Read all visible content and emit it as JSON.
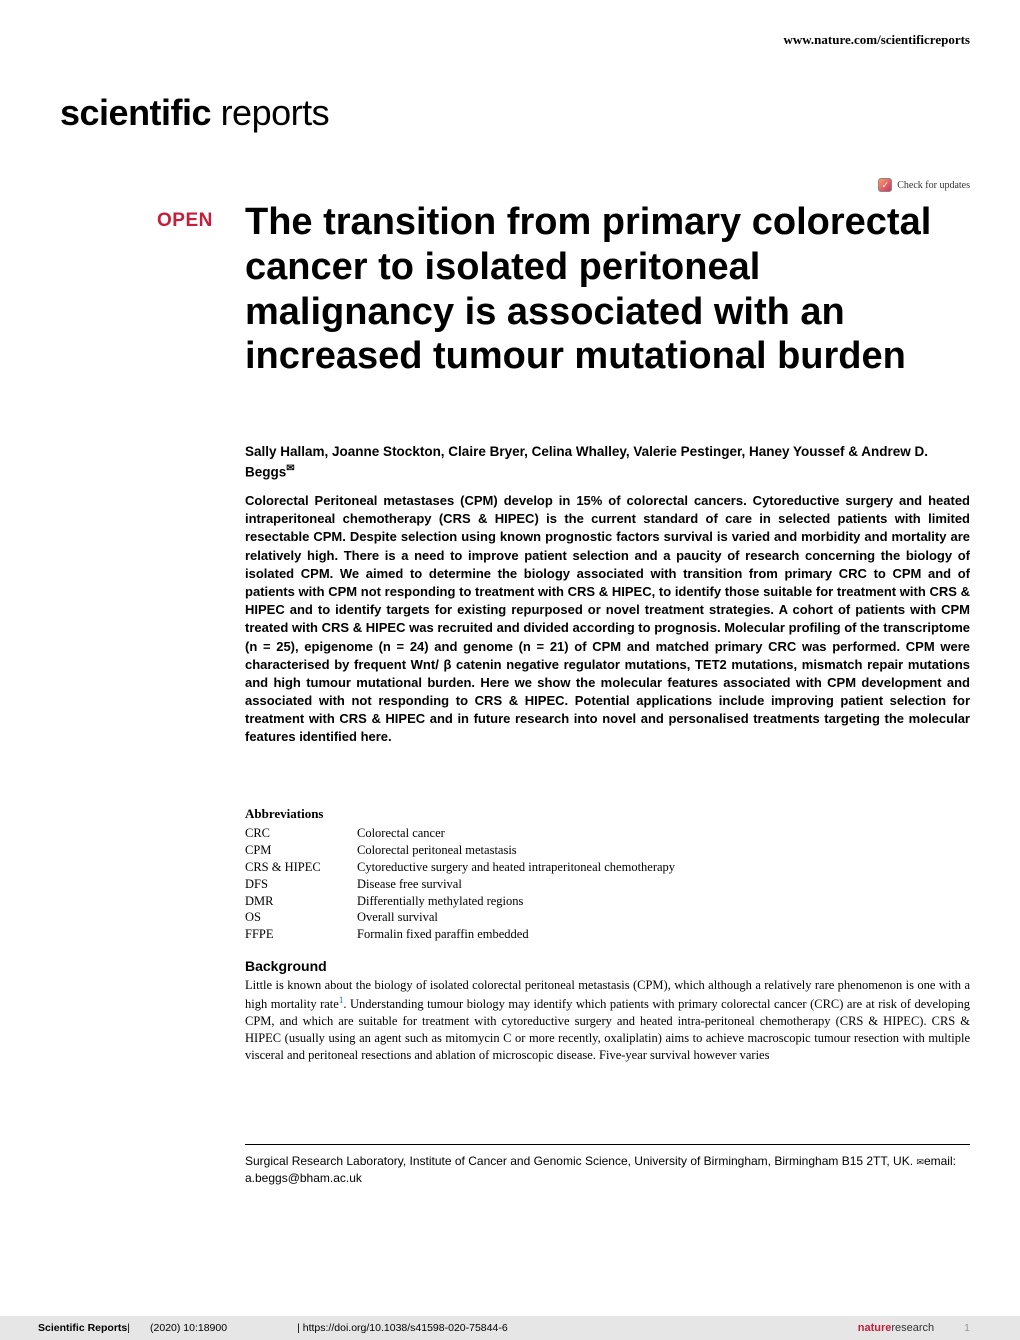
{
  "header": {
    "url": "www.nature.com/scientificreports"
  },
  "journal_logo": {
    "bold_part": "scientific",
    "light_part": " reports"
  },
  "check_updates": {
    "label": "Check for updates"
  },
  "open_badge": "OPEN",
  "article": {
    "title": "The transition from primary colorectal cancer to isolated peritoneal malignancy is associated with an increased tumour mutational burden",
    "authors": "Sally Hallam, Joanne Stockton, Claire Bryer, Celina Whalley, Valerie Pestinger, Haney Youssef & Andrew D. Beggs",
    "corresponding_symbol": "✉",
    "abstract": "Colorectal Peritoneal metastases (CPM) develop in 15% of colorectal cancers. Cytoreductive surgery and heated intraperitoneal chemotherapy (CRS & HIPEC) is the current standard of care in selected patients with limited resectable CPM. Despite selection using known prognostic factors survival is varied and morbidity and mortality are relatively high. There is a need to improve patient selection and a paucity of research concerning the biology of isolated CPM. We aimed to determine the biology associated with transition from primary CRC to CPM and of patients with CPM not responding to treatment with CRS & HIPEC, to identify those suitable for treatment with CRS & HIPEC and to identify targets for existing repurposed or novel treatment strategies. A cohort of patients with CPM treated with CRS & HIPEC was recruited and divided according to prognosis. Molecular profiling of the transcriptome (n = 25), epigenome (n = 24) and genome (n = 21) of CPM and matched primary CRC was performed. CPM were characterised by frequent Wnt/ β catenin negative regulator mutations, TET2 mutations, mismatch repair mutations and high tumour mutational burden. Here we show the molecular features associated with CPM development and associated with not responding to CRS & HIPEC. Potential applications include improving patient selection for treatment with CRS & HIPEC and in future research into novel and personalised treatments targeting the molecular features identified here."
  },
  "abbreviations": {
    "heading": "Abbreviations",
    "items": [
      {
        "key": "CRC",
        "value": "Colorectal cancer"
      },
      {
        "key": "CPM",
        "value": "Colorectal peritoneal metastasis"
      },
      {
        "key": "CRS & HIPEC",
        "value": "Cytoreductive surgery and heated intraperitoneal chemotherapy"
      },
      {
        "key": "DFS",
        "value": "Disease free survival"
      },
      {
        "key": "DMR",
        "value": "Differentially methylated regions"
      },
      {
        "key": "OS",
        "value": "Overall survival"
      },
      {
        "key": "FFPE",
        "value": "Formalin fixed paraffin embedded"
      }
    ]
  },
  "background": {
    "heading": "Background",
    "text_part1": "Little is known about the biology of isolated colorectal peritoneal metastasis (CPM), which although a relatively rare phenomenon is one with a high mortality rate",
    "ref1": "1",
    "text_part2": ". Understanding tumour biology may identify which patients with primary colorectal cancer (CRC) are at risk of developing CPM, and which are suitable for treatment with cytoreductive surgery and heated intra-peritoneal chemotherapy (CRS & HIPEC). CRS & HIPEC (usually using an agent such as mitomycin C or more recently, oxaliplatin) aims to achieve macroscopic tumour resection with multiple visceral and peritoneal resections and ablation of microscopic disease. Five-year survival however varies"
  },
  "affiliation": {
    "text": "Surgical Research Laboratory, Institute of Cancer and Genomic Science, University of Birmingham, Birmingham B15 2TT, UK. ",
    "email_symbol": "✉",
    "email_label": "email: ",
    "email": "a.beggs@bham.ac.uk"
  },
  "footer": {
    "journal": "Scientific Reports",
    "separator": " |",
    "citation": "(2020) 10:18900",
    "doi_separator": " | ",
    "doi": "https://doi.org/10.1038/s41598-020-75844-6",
    "publisher_bold": "nature",
    "publisher_light": "research",
    "page_number": "1"
  },
  "colors": {
    "red_accent": "#c41e3a",
    "footer_bg": "#e6e6e6",
    "link_blue": "#0066cc",
    "text": "#000000",
    "page_gray": "#999999"
  }
}
